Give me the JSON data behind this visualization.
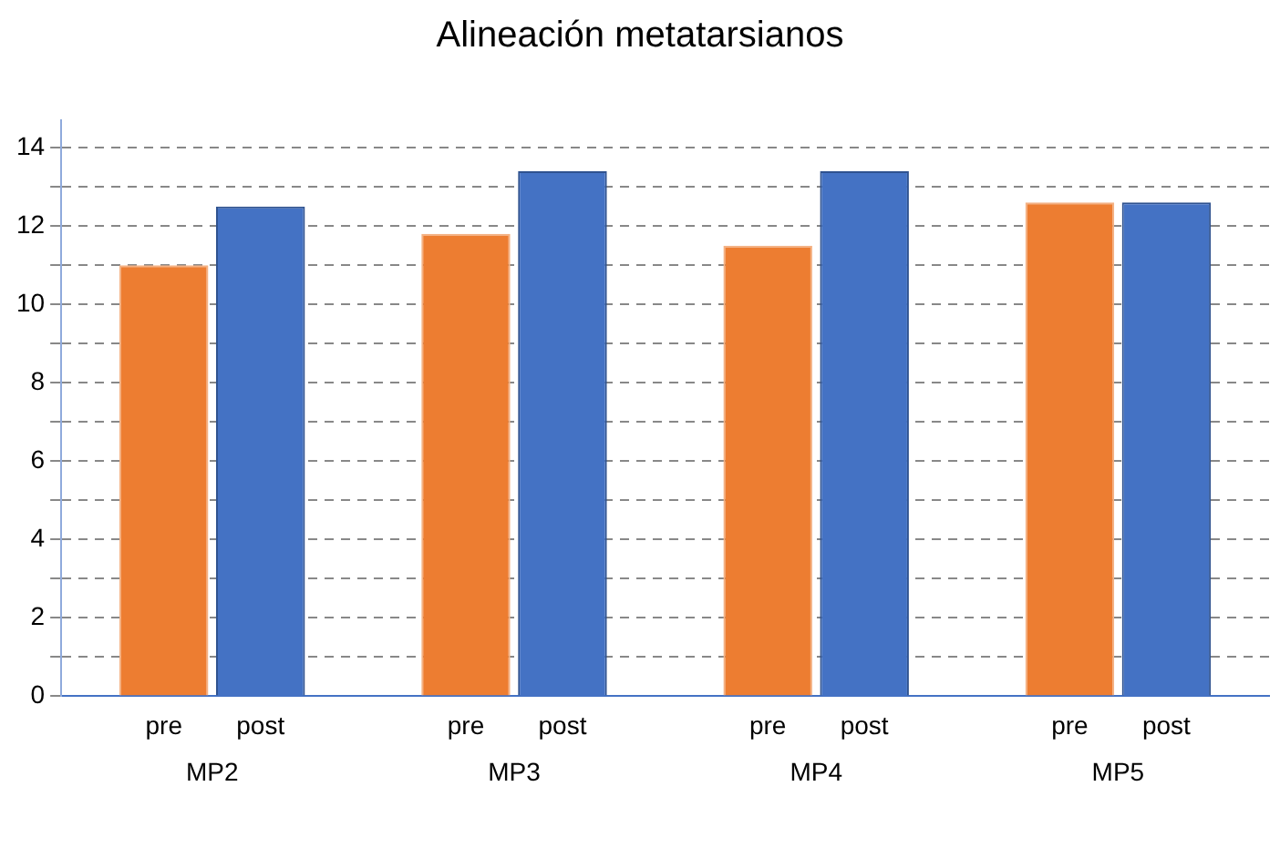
{
  "chart_data": {
    "type": "bar",
    "title": "Alineación metatarsianos",
    "categories": [
      "MP2",
      "MP3",
      "MP4",
      "MP5"
    ],
    "series": [
      {
        "name": "pre",
        "color": "#ed7d31",
        "values": [
          11,
          11.8,
          11.5,
          12.6
        ]
      },
      {
        "name": "post",
        "color": "#4472c4",
        "values": [
          12.5,
          13.4,
          13.4,
          12.6
        ]
      }
    ],
    "ylim": [
      0,
      14.7
    ],
    "yticks": [
      0,
      {
        "value": 1,
        "label": null
      },
      2,
      {
        "value": 3,
        "label": null
      },
      4,
      {
        "value": 5,
        "label": null
      },
      6,
      {
        "value": 7,
        "label": null
      },
      8,
      {
        "value": 9,
        "label": null
      },
      10,
      {
        "value": 11,
        "label": null
      },
      12,
      {
        "value": 13,
        "label": null
      },
      14
    ],
    "grid": "y"
  }
}
